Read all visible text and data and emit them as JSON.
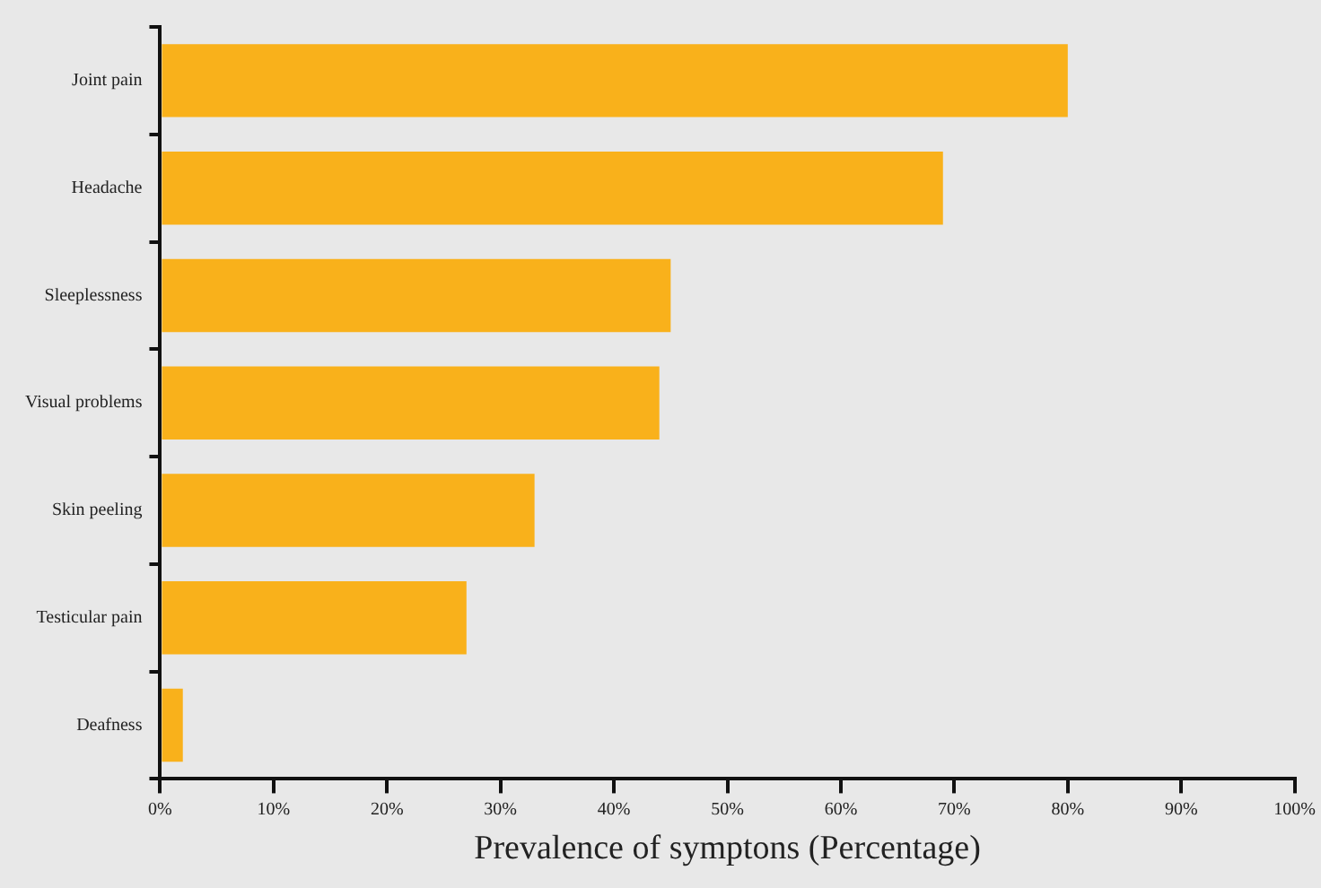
{
  "chart_data": {
    "type": "bar",
    "orientation": "horizontal",
    "xlabel": "Prevalence of symptons (Percentage)",
    "categories": [
      "Joint pain",
      "Headache",
      "Sleeplessness",
      "Visual problems",
      "Skin peeling",
      "Testicular pain",
      "Deafness"
    ],
    "values": [
      80,
      69,
      45,
      44,
      33,
      27,
      2
    ],
    "color": "#f9b11b",
    "xlim": [
      0,
      100
    ],
    "xticks": [
      {
        "value": 0,
        "label": "0%"
      },
      {
        "value": 10,
        "label": "10%"
      },
      {
        "value": 20,
        "label": "20%"
      },
      {
        "value": 30,
        "label": "30%"
      },
      {
        "value": 40,
        "label": "40%"
      },
      {
        "value": 50,
        "label": "50%"
      },
      {
        "value": 60,
        "label": "60%"
      },
      {
        "value": 70,
        "label": "70%"
      },
      {
        "value": 80,
        "label": "80%"
      },
      {
        "value": 90,
        "label": "90%"
      },
      {
        "value": 100,
        "label": "100%"
      }
    ],
    "grid": false,
    "legend": false
  }
}
